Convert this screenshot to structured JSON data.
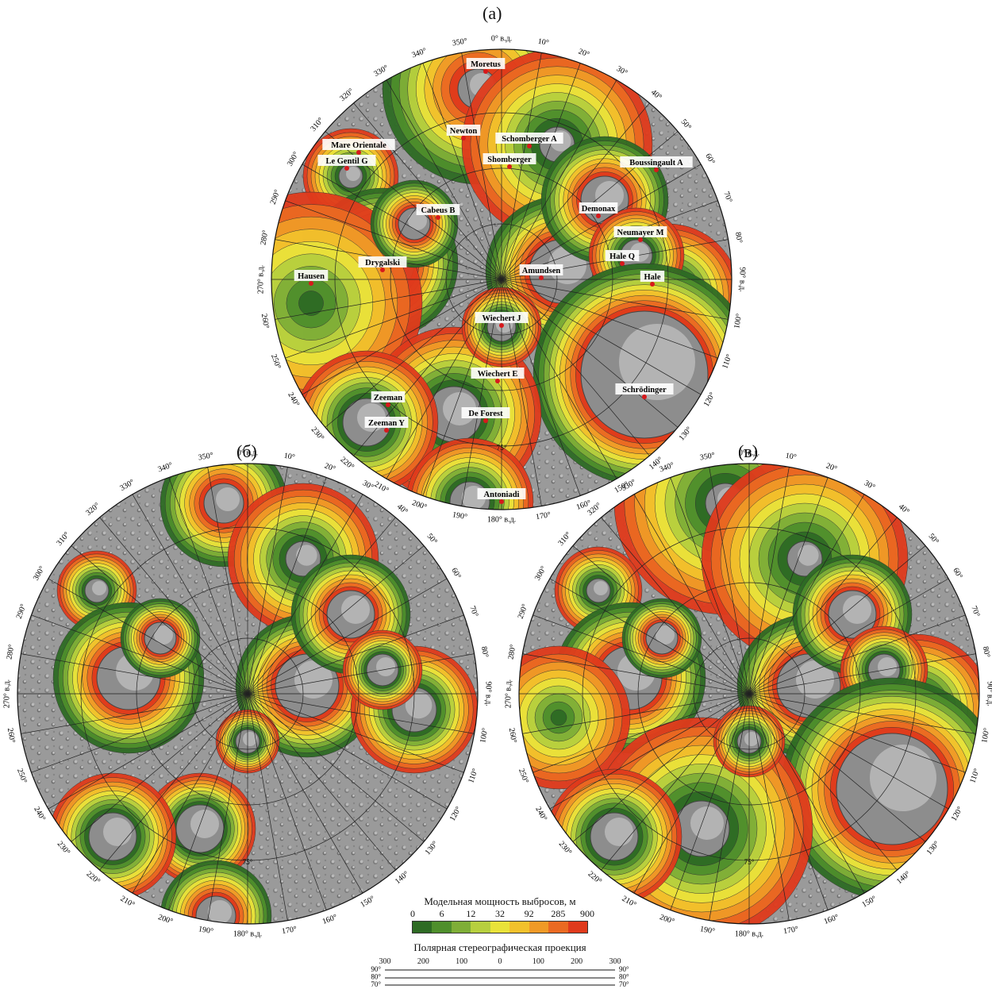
{
  "panels": {
    "a": {
      "letter": "(a)"
    },
    "b": {
      "letter": "(б)"
    },
    "c": {
      "letter": "(в)"
    }
  },
  "longitude_labels": [
    "0° в.д.",
    "10°",
    "20°",
    "30°",
    "40°",
    "50°",
    "60°",
    "70°",
    "80°",
    "90° в.д.",
    "100°",
    "110°",
    "120°",
    "130°",
    "140°",
    "150°",
    "160°",
    "170°",
    "180° в.д.",
    "190°",
    "200°",
    "210°",
    "220°",
    "230°",
    "240°",
    "250°",
    "260°",
    "270° в.д.",
    "280°",
    "290°",
    "300°",
    "310°",
    "320°",
    "330°",
    "340°",
    "350°"
  ],
  "inner_label": "75°",
  "craters": [
    {
      "name": "Moretus"
    },
    {
      "name": "Newton"
    },
    {
      "name": "Schomberger A"
    },
    {
      "name": "Shomberger"
    },
    {
      "name": "Mare Orientale"
    },
    {
      "name": "Le Gentil G"
    },
    {
      "name": "Boussingault A"
    },
    {
      "name": "Cabeus B"
    },
    {
      "name": "Demonax"
    },
    {
      "name": "Neumayer M"
    },
    {
      "name": "Drygalski"
    },
    {
      "name": "Hale Q"
    },
    {
      "name": "Hausen"
    },
    {
      "name": "Amundsen"
    },
    {
      "name": "Hale"
    },
    {
      "name": "Wiechert J"
    },
    {
      "name": "Wiechert E"
    },
    {
      "name": "Schrödinger"
    },
    {
      "name": "Zeeman"
    },
    {
      "name": "De Forest"
    },
    {
      "name": "Zeeman Y"
    },
    {
      "name": "Antoniadi"
    }
  ],
  "legend": {
    "title": "Модельная мощность выбросов, м",
    "ticks": [
      "0",
      "6",
      "12",
      "32",
      "92",
      "285",
      "900"
    ],
    "colors": [
      "#2e6b24",
      "#4f8f2c",
      "#7fae37",
      "#b7cf3e",
      "#e9e23a",
      "#f2c12c",
      "#f09a27",
      "#ea6a22",
      "#e03a1c"
    ]
  },
  "projection": "Полярная стереографическая проекция",
  "scale": {
    "distances": [
      "300",
      "200",
      "100",
      "0",
      "100",
      "200",
      "300"
    ],
    "latitudes": [
      "90°",
      "80°",
      "70°"
    ]
  }
}
